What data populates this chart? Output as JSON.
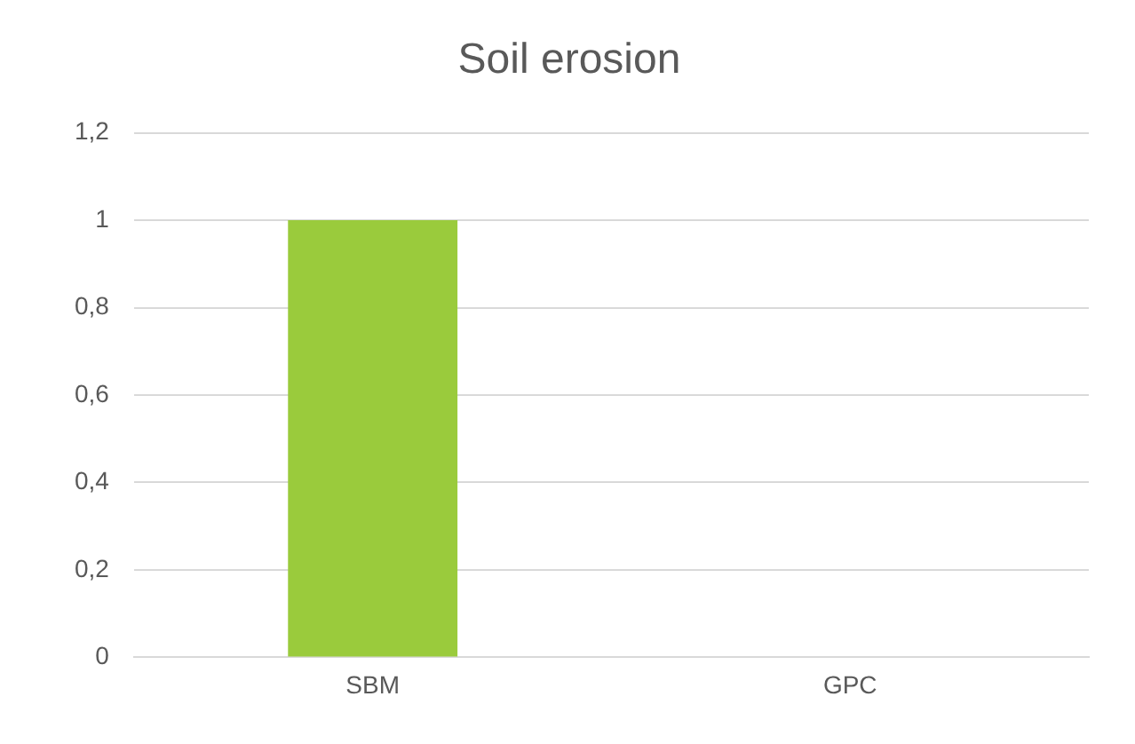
{
  "chart_data": {
    "type": "bar",
    "title": "Soil erosion",
    "categories": [
      "SBM",
      "GPC"
    ],
    "values": [
      1,
      0
    ],
    "color": "#9acb3c",
    "ylim": [
      0,
      1.2
    ],
    "yticks": [
      0,
      {
        "value": 0.2,
        "label": "0,2"
      },
      {
        "value": 0.4,
        "label": "0,4"
      },
      {
        "value": 0.6,
        "label": "0,6"
      },
      {
        "value": 0.8,
        "label": "0,8"
      },
      1,
      {
        "value": 1.2,
        "label": "1,2"
      }
    ],
    "grid": "y",
    "legend": false
  }
}
